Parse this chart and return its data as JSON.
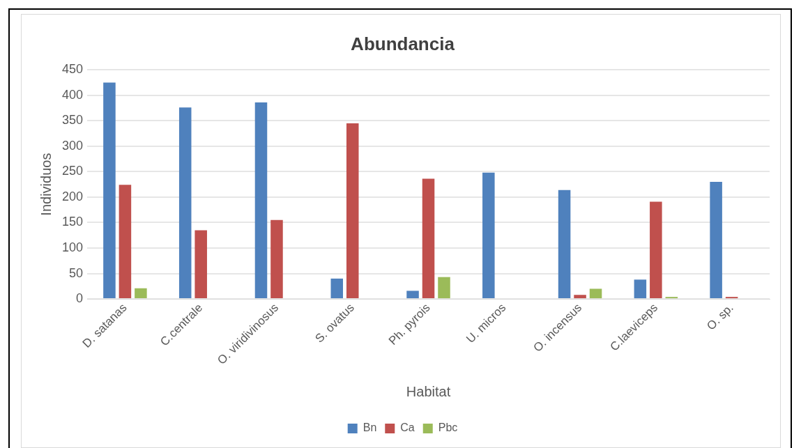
{
  "chart_data": {
    "type": "bar",
    "title": "Abundancia",
    "xlabel": "Habitat",
    "ylabel": "Individuos",
    "categories": [
      "D. satanas",
      "C.centrale",
      "O. viridivinosus",
      "S. ovatus",
      "Ph. pyrois",
      "U. micros",
      "O. incensus",
      "C.laeviceps",
      "O. sp."
    ],
    "series": [
      {
        "name": "Bn",
        "color": "#4f81bd",
        "values": [
          425,
          376,
          386,
          40,
          16,
          248,
          214,
          38,
          230
        ]
      },
      {
        "name": "Ca",
        "color": "#c0504d",
        "values": [
          224,
          135,
          155,
          345,
          236,
          0,
          8,
          191,
          4
        ]
      },
      {
        "name": "Pbc",
        "color": "#9bbb59",
        "values": [
          21,
          0,
          0,
          0,
          43,
          0,
          20,
          4,
          0
        ]
      }
    ],
    "ylim": [
      0,
      450
    ],
    "yticks": [
      0,
      50,
      100,
      150,
      200,
      250,
      300,
      350,
      400,
      450
    ],
    "grid": "y",
    "legend": "bottom"
  }
}
